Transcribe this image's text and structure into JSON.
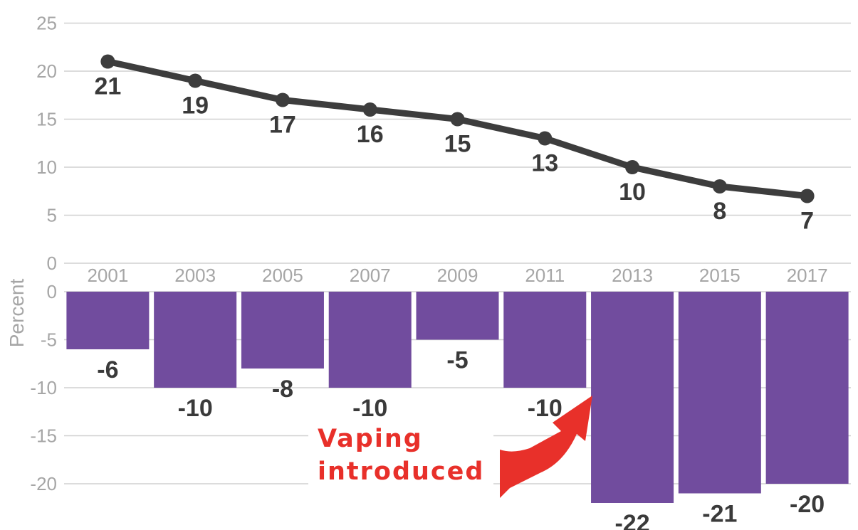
{
  "chart_data": [
    {
      "type": "line",
      "x": [
        "2001",
        "2003",
        "2005",
        "2007",
        "2009",
        "2011",
        "2013",
        "2015",
        "2017"
      ],
      "values": [
        21,
        19,
        17,
        16,
        15,
        13,
        10,
        8,
        7
      ],
      "data_labels": [
        "21",
        "19",
        "17",
        "16",
        "15",
        "13",
        "10",
        "8",
        "7"
      ],
      "ylim": [
        0,
        25
      ],
      "yticks": [
        "25",
        "20",
        "15",
        "10",
        "5",
        "0"
      ],
      "grid": true,
      "color": "#3d3d3d"
    },
    {
      "type": "bar",
      "categories": [
        "2001",
        "2003",
        "2005",
        "2007",
        "2009",
        "2011",
        "2013",
        "2015",
        "2017"
      ],
      "values": [
        -6,
        -10,
        -8,
        -10,
        -5,
        -10,
        -22,
        -21,
        -20
      ],
      "data_labels": [
        "-6",
        "-10",
        "-8",
        "-10",
        "-5",
        "-10",
        "-22",
        "-21",
        "-20"
      ],
      "ylim": [
        -22,
        0
      ],
      "yticks": [
        "0",
        "-5",
        "-10",
        "-15",
        "-20"
      ],
      "ylabel": "Percent",
      "grid": true,
      "color": "#714c9e"
    }
  ],
  "annotation": {
    "lines": [
      "Vaping",
      "introduced"
    ],
    "color": "#e8302a",
    "arrow_icon": "curved-arrow-icon"
  }
}
